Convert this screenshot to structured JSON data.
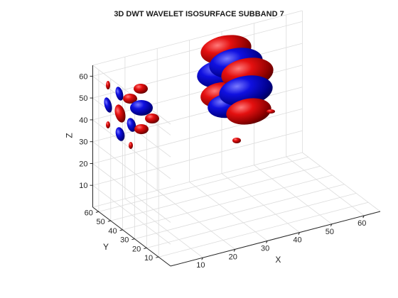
{
  "chart_data": {
    "type": "3d-isosurface",
    "title": "3D DWT WAVELET ISOSURFACE SUBBAND 7",
    "xlabel": "X",
    "ylabel": "Y",
    "zlabel": "Z",
    "xlim": [
      0,
      65
    ],
    "ylim": [
      0,
      65
    ],
    "zlim": [
      0,
      65
    ],
    "xticks": [
      "10",
      "20",
      "30",
      "40",
      "50",
      "60"
    ],
    "yticks": [
      "10",
      "20",
      "30",
      "40",
      "50",
      "60"
    ],
    "zticks": [
      "10",
      "20",
      "30",
      "40",
      "50",
      "60"
    ],
    "grid": true,
    "box": true,
    "colors": {
      "positive": "#d40000",
      "negative": "#0000d4",
      "grid": "#dcdcdc",
      "axis": "#262626"
    }
  }
}
